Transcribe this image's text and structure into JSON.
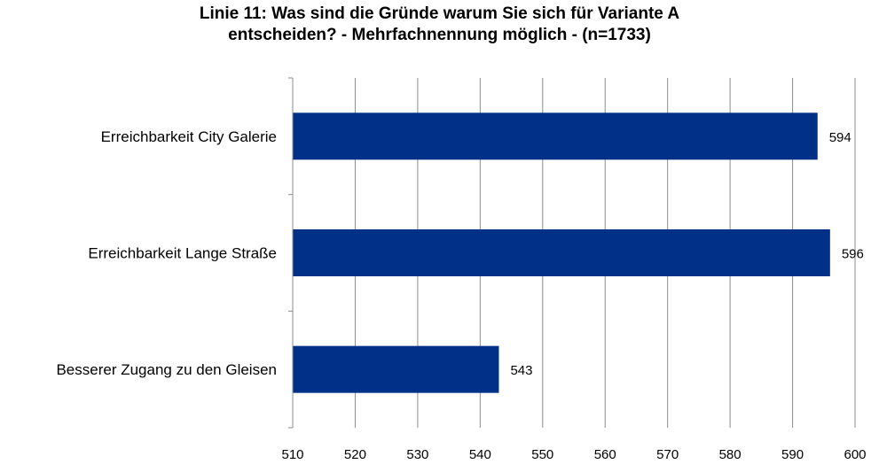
{
  "chart_data": {
    "type": "bar",
    "orientation": "horizontal",
    "title_line1": "Linie 11: Was sind die Gründe warum Sie sich für Variante A",
    "title_line2": "entscheiden? - Mehrfachnennung möglich - (n=1733)",
    "categories": [
      "Erreichbarkeit City Galerie",
      "Erreichbarkeit Lange Straße",
      "Besserer Zugang zu den Gleisen"
    ],
    "values": [
      594,
      596,
      543
    ],
    "data_labels": [
      "594",
      "596",
      "543"
    ],
    "xlim": [
      510,
      600
    ],
    "xticks": [
      "510",
      "520",
      "530",
      "540",
      "550",
      "560",
      "570",
      "580",
      "590",
      "600"
    ],
    "grid": true,
    "bar_color": "#003087"
  }
}
